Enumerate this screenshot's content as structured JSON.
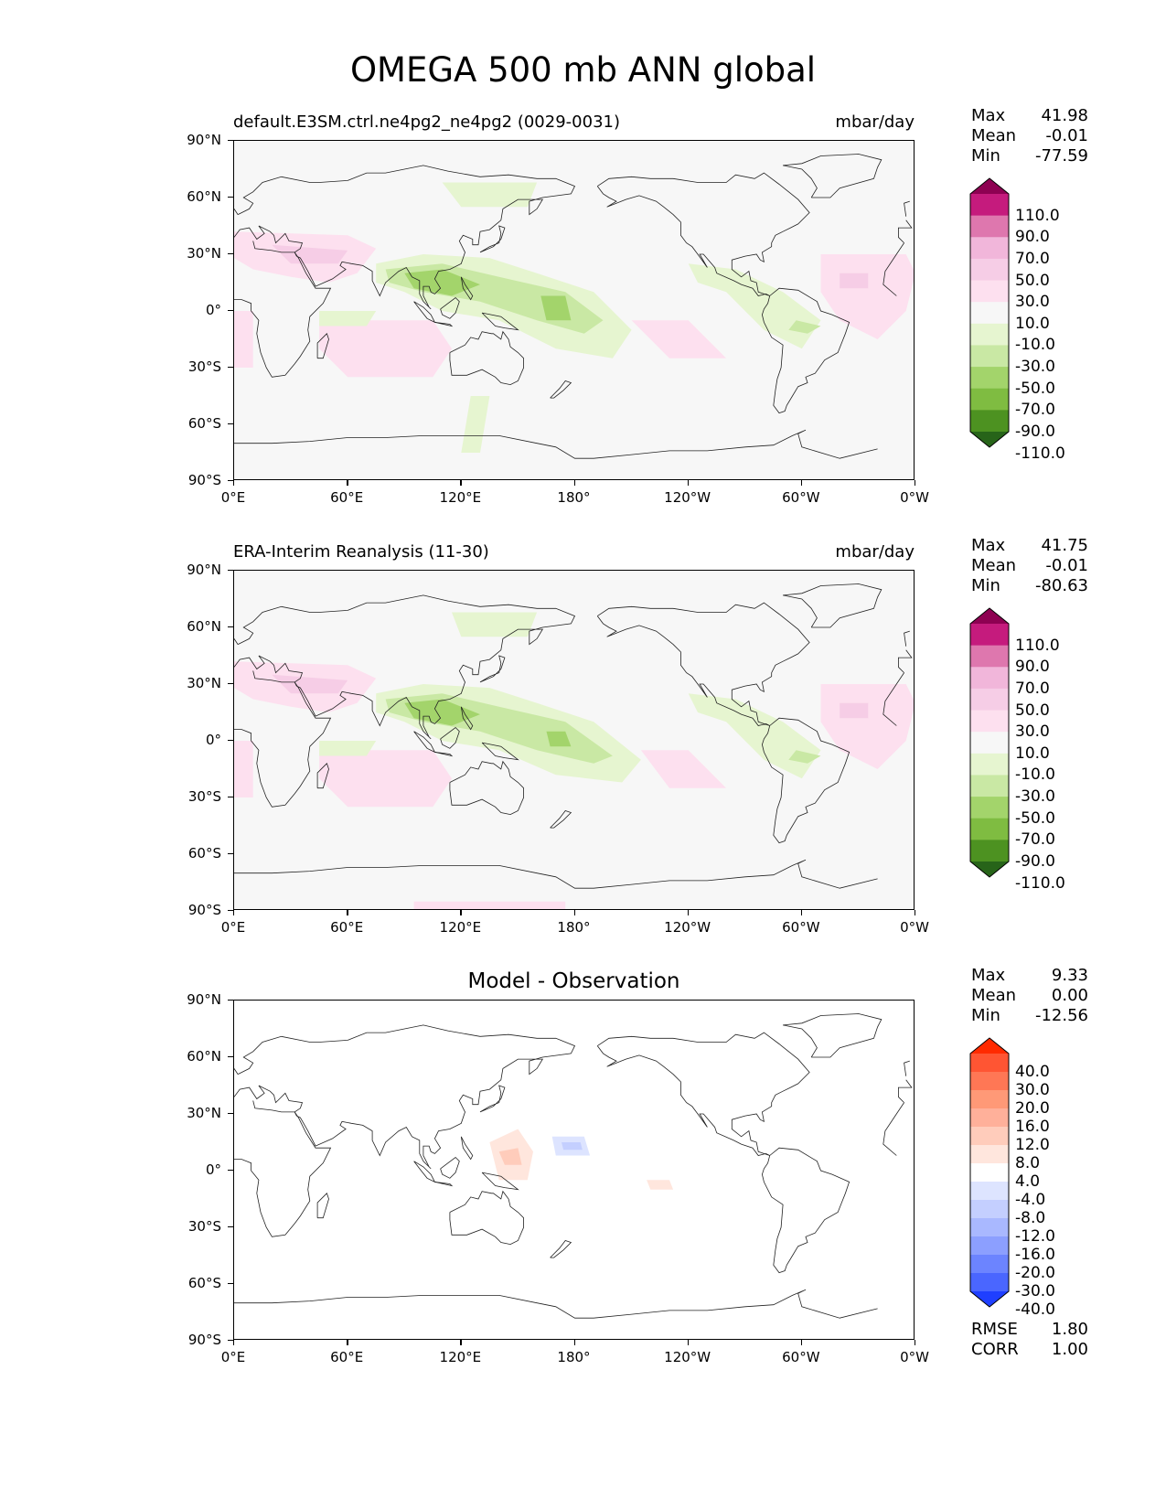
{
  "figure": {
    "title": "OMEGA 500 mb ANN global"
  },
  "axes": {
    "lat_labels": [
      "90°N",
      "60°N",
      "30°N",
      "0°",
      "30°S",
      "60°S",
      "90°S"
    ],
    "lon_labels": [
      "0°E",
      "60°E",
      "120°E",
      "180°",
      "120°W",
      "60°W",
      "0°W"
    ]
  },
  "panels": [
    {
      "left_title": "default.E3SM.ctrl.ne4pg2_ne4pg2 (0029-0031)",
      "right_title": "mbar/day",
      "center_title": "",
      "stats": [
        {
          "label": "Max",
          "value": "41.98"
        },
        {
          "label": "Mean",
          "value": "-0.01"
        },
        {
          "label": "Min",
          "value": "-77.59"
        }
      ],
      "extra_stats": [],
      "colorbar": {
        "labels": [
          "110.0",
          "90.0",
          "70.0",
          "50.0",
          "30.0",
          "10.0",
          "-10.0",
          "-30.0",
          "-50.0",
          "-70.0",
          "-90.0",
          "-110.0"
        ],
        "colors": [
          "#8e0152",
          "#c51b7d",
          "#de77ae",
          "#f1b6da",
          "#f6cde6",
          "#fde0ef",
          "#f7f7f7",
          "#e6f5d0",
          "#c9e8a4",
          "#a3d46b",
          "#7fbc41",
          "#4d9221",
          "#276419"
        ]
      }
    },
    {
      "left_title": "ERA-Interim Reanalysis (11-30)",
      "right_title": "mbar/day",
      "center_title": "",
      "stats": [
        {
          "label": "Max",
          "value": "41.75"
        },
        {
          "label": "Mean",
          "value": "-0.01"
        },
        {
          "label": "Min",
          "value": "-80.63"
        }
      ],
      "extra_stats": [],
      "colorbar": {
        "labels": [
          "110.0",
          "90.0",
          "70.0",
          "50.0",
          "30.0",
          "10.0",
          "-10.0",
          "-30.0",
          "-50.0",
          "-70.0",
          "-90.0",
          "-110.0"
        ],
        "colors": [
          "#8e0152",
          "#c51b7d",
          "#de77ae",
          "#f1b6da",
          "#f6cde6",
          "#fde0ef",
          "#f7f7f7",
          "#e6f5d0",
          "#c9e8a4",
          "#a3d46b",
          "#7fbc41",
          "#4d9221",
          "#276419"
        ]
      }
    },
    {
      "left_title": "",
      "right_title": "",
      "center_title": "Model - Observation",
      "stats": [
        {
          "label": "Max",
          "value": "9.33"
        },
        {
          "label": "Mean",
          "value": "0.00"
        },
        {
          "label": "Min",
          "value": "-12.56"
        }
      ],
      "extra_stats": [
        {
          "label": "RMSE",
          "value": "1.80"
        },
        {
          "label": "CORR",
          "value": "1.00"
        }
      ],
      "colorbar": {
        "labels": [
          "40.0",
          "30.0",
          "20.0",
          "16.0",
          "12.0",
          "8.0",
          "4.0",
          "-4.0",
          "-8.0",
          "-12.0",
          "-16.0",
          "-20.0",
          "-30.0",
          "-40.0"
        ],
        "colors": [
          "#ff2a00",
          "#ff5533",
          "#ff7755",
          "#ff9977",
          "#ffb09a",
          "#ffccbb",
          "#ffe6dd",
          "#ffffff",
          "#dde4ff",
          "#c4cfff",
          "#a9b8ff",
          "#8c9fff",
          "#6c84ff",
          "#4a66ff",
          "#1f3fff"
        ]
      }
    }
  ]
}
